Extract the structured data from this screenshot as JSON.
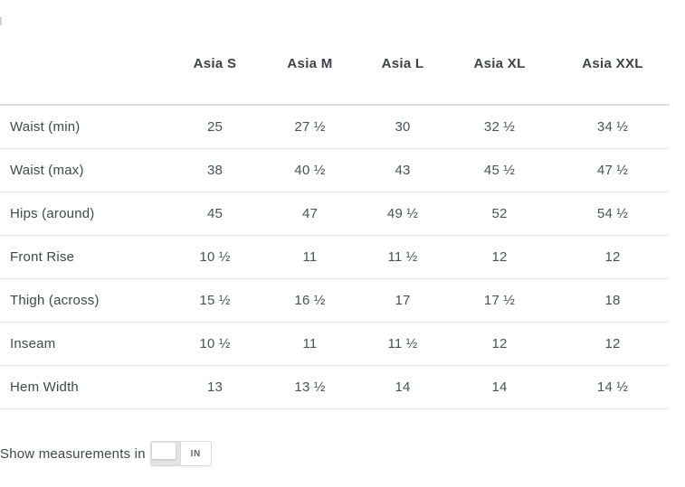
{
  "table": {
    "columns": [
      "Asia S",
      "Asia M",
      "Asia L",
      "Asia XL",
      "Asia XXL"
    ],
    "rows": [
      {
        "label": "Waist (min)",
        "values": [
          "25",
          "27 ½",
          "30",
          "32 ½",
          "34 ½"
        ]
      },
      {
        "label": "Waist (max)",
        "values": [
          "38",
          "40 ½",
          "43",
          "45 ½",
          "47 ½"
        ]
      },
      {
        "label": "Hips (around)",
        "values": [
          "45",
          "47",
          "49 ½",
          "52",
          "54 ½"
        ]
      },
      {
        "label": "Front Rise",
        "values": [
          "10 ½",
          "11",
          "11 ½",
          "12",
          "12"
        ]
      },
      {
        "label": "Thigh (across)",
        "values": [
          "15 ½",
          "16 ½",
          "17",
          "17 ½",
          "18"
        ]
      },
      {
        "label": "Inseam",
        "values": [
          "10 ½",
          "11",
          "11 ½",
          "12",
          "12"
        ]
      },
      {
        "label": "Hem Width",
        "values": [
          "13",
          "13 ½",
          "14",
          "14",
          "14 ½"
        ]
      }
    ]
  },
  "footer": {
    "label": "Show measurements in",
    "unit_selected": "IN"
  },
  "colors": {
    "header_text": "#3d4247",
    "body_text": "#45494d",
    "rule_heavy": "#dcdddd",
    "rule_light": "#e9eaea",
    "toggle_track": "#e3e3e4",
    "toggle_border": "#d9d9d9",
    "unit_text": "#5d666f"
  }
}
